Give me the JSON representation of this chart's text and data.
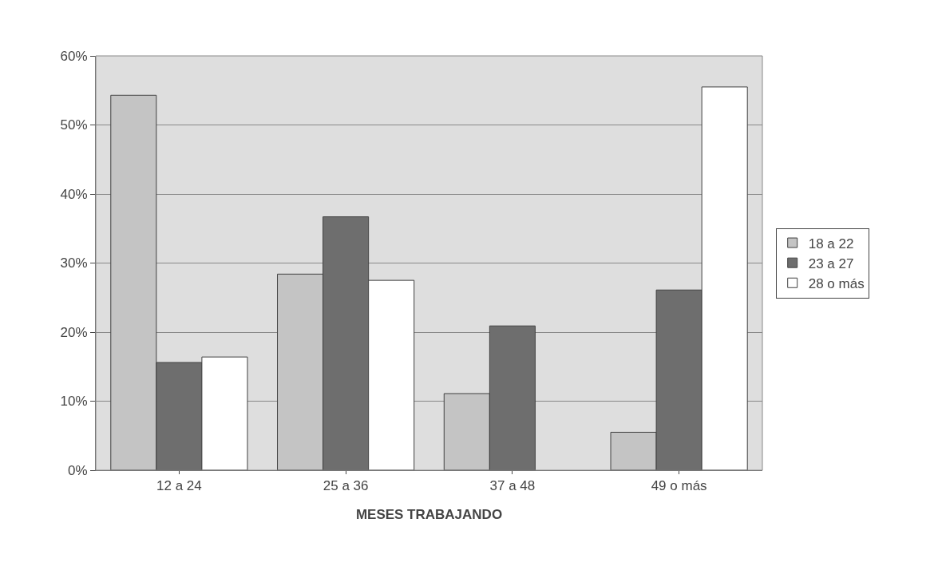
{
  "chart_data": {
    "type": "bar",
    "xlabel": "MESES TRABAJANDO",
    "categories": [
      "12 a 24",
      "25 a 36",
      "37 a 48",
      "49 o más"
    ],
    "series": [
      {
        "name": "18 a 22",
        "color": "#c4c4c4",
        "values": [
          54.3,
          28.4,
          11.1,
          5.5
        ]
      },
      {
        "name": "23 a 27",
        "color": "#6e6e6e",
        "values": [
          15.6,
          36.7,
          20.9,
          26.1
        ]
      },
      {
        "name": "28 o más",
        "color": "#ffffff",
        "values": [
          16.4,
          27.5,
          null,
          55.5
        ]
      }
    ],
    "ylim": [
      0,
      60
    ],
    "yticks": [
      {
        "value": 0,
        "label": "0%"
      },
      {
        "value": 10,
        "label": "10%"
      },
      {
        "value": 20,
        "label": "20%"
      },
      {
        "value": 30,
        "label": "30%"
      },
      {
        "value": 40,
        "label": "40%"
      },
      {
        "value": 50,
        "label": "50%"
      },
      {
        "value": 60,
        "label": "60%"
      }
    ],
    "grid": "y",
    "legend": "right"
  }
}
